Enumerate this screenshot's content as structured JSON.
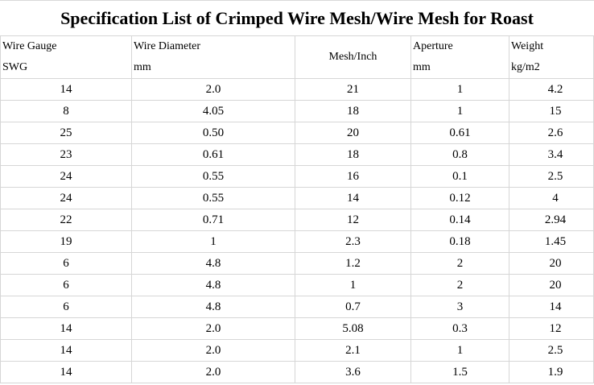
{
  "title": "Specification List of Crimped Wire Mesh/Wire Mesh for Roast",
  "headers": {
    "gauge_line1": "Wire Gauge",
    "gauge_line2": "SWG",
    "diameter_line1": "Wire Diameter",
    "diameter_line2": "mm",
    "mesh": "Mesh/Inch",
    "aperture_line1": "Aperture",
    "aperture_line2": "mm",
    "weight_line1": "Weight",
    "weight_line2": "kg/m2"
  },
  "rows": [
    [
      "14",
      "2.0",
      "21",
      "1",
      "4.2"
    ],
    [
      "8",
      "4.05",
      "18",
      "1",
      "15"
    ],
    [
      "25",
      "0.50",
      "20",
      "0.61",
      "2.6"
    ],
    [
      "23",
      "0.61",
      "18",
      "0.8",
      "3.4"
    ],
    [
      "24",
      "0.55",
      "16",
      "0.1",
      "2.5"
    ],
    [
      "24",
      "0.55",
      "14",
      "0.12",
      "4"
    ],
    [
      "22",
      "0.71",
      "12",
      "0.14",
      "2.94"
    ],
    [
      "19",
      "1",
      "2.3",
      "0.18",
      "1.45"
    ],
    [
      "6",
      "4.8",
      "1.2",
      "2",
      "20"
    ],
    [
      "6",
      "4.8",
      "1",
      "2",
      "20"
    ],
    [
      "6",
      "4.8",
      "0.7",
      "3",
      "14"
    ],
    [
      "14",
      "2.0",
      "5.08",
      "0.3",
      "12"
    ],
    [
      "14",
      "2.0",
      "2.1",
      "1",
      "2.5"
    ],
    [
      "14",
      "2.0",
      "3.6",
      "1.5",
      "1.9"
    ]
  ]
}
